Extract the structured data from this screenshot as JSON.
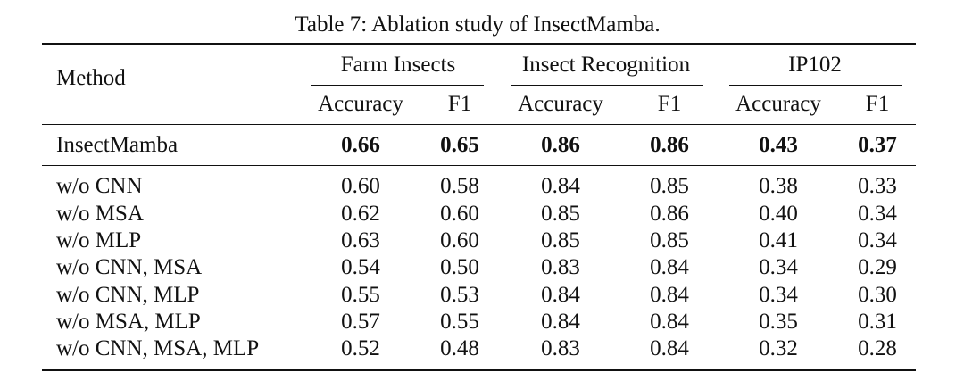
{
  "caption": "Table 7: Ablation study of InsectMamba.",
  "header": {
    "method": "Method",
    "groups": [
      "Farm Insects",
      "Insect Recognition",
      "IP102"
    ],
    "metrics": [
      "Accuracy",
      "F1",
      "Accuracy",
      "F1",
      "Accuracy",
      "F1"
    ]
  },
  "main_row": {
    "method": "InsectMamba",
    "values": [
      "0.66",
      "0.65",
      "0.86",
      "0.86",
      "0.43",
      "0.37"
    ]
  },
  "ablation_rows": [
    {
      "method": "w/o CNN",
      "values": [
        "0.60",
        "0.58",
        "0.84",
        "0.85",
        "0.38",
        "0.33"
      ]
    },
    {
      "method": "w/o MSA",
      "values": [
        "0.62",
        "0.60",
        "0.85",
        "0.86",
        "0.40",
        "0.34"
      ]
    },
    {
      "method": "w/o MLP",
      "values": [
        "0.63",
        "0.60",
        "0.85",
        "0.85",
        "0.41",
        "0.34"
      ]
    },
    {
      "method": "w/o CNN, MSA",
      "values": [
        "0.54",
        "0.50",
        "0.83",
        "0.84",
        "0.34",
        "0.29"
      ]
    },
    {
      "method": "w/o CNN, MLP",
      "values": [
        "0.55",
        "0.53",
        "0.84",
        "0.84",
        "0.34",
        "0.30"
      ]
    },
    {
      "method": "w/o MSA, MLP",
      "values": [
        "0.57",
        "0.55",
        "0.84",
        "0.84",
        "0.35",
        "0.31"
      ]
    },
    {
      "method": "w/o CNN, MSA, MLP",
      "values": [
        "0.52",
        "0.48",
        "0.83",
        "0.84",
        "0.32",
        "0.28"
      ]
    }
  ]
}
